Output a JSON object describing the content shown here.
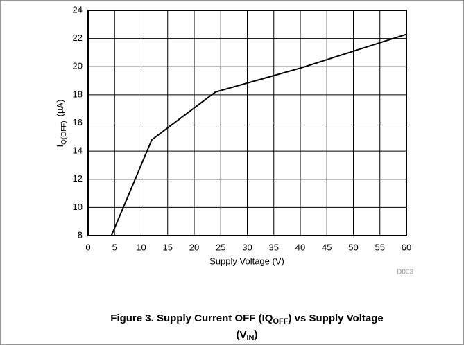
{
  "chart_data": {
    "type": "line",
    "title_parts": [
      "Figure 3. Supply Current OFF (IQ",
      "OFF",
      ") vs Supply Voltage",
      "(V",
      "IN",
      ")"
    ],
    "x_label": "Supply Voltage (V)",
    "y_label_parts": [
      "I",
      "Q(OFF)",
      "(µA)"
    ],
    "note": "D003",
    "x": [
      4.4,
      12,
      24,
      40,
      60
    ],
    "series": [
      {
        "color": "#000000",
        "values": [
          8,
          14.8,
          18.2,
          19.9,
          22.3
        ]
      }
    ],
    "xlim": [
      0,
      60
    ],
    "xticks": [
      0,
      5,
      10,
      15,
      20,
      25,
      30,
      35,
      40,
      45,
      50,
      55,
      60
    ],
    "ylim": [
      8,
      24
    ],
    "yticks": [
      8,
      10,
      12,
      14,
      16,
      18,
      20,
      22,
      24
    ],
    "grid": true
  }
}
